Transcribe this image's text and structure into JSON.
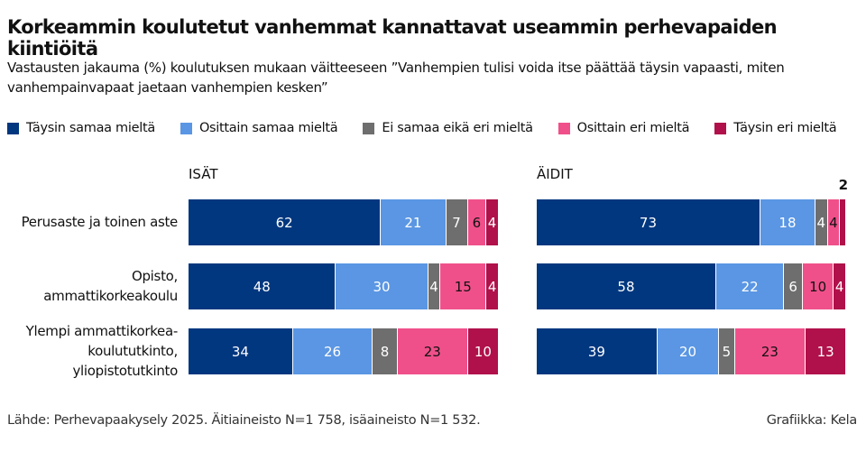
{
  "title": "Korkeammin koulutetut vanhemmat kannattavat useammin perhevapaiden kiintiöitä",
  "subtitle": "Vastausten jakauma (%) koulutuksen mukaan väitteeseen ”Vanhempien tulisi voida itse päättää täysin vapaasti, miten vanhempainvapaat jaetaan vanhempien kesken”",
  "source": "Lähde: Perhevapaakysely 2025. Äitiaineisto N=1 758, isäaineisto N=1 532.",
  "credit": "Grafiikka: Kela",
  "chart_data": {
    "type": "bar",
    "stacked": true,
    "orientation": "horizontal",
    "legend_position": "top",
    "series": [
      {
        "name": "Täysin samaa mieltä",
        "color": "#00377f"
      },
      {
        "name": "Osittain samaa mieltä",
        "color": "#5a96e3"
      },
      {
        "name": "Ei samaa eikä eri mieltä",
        "color": "#6e6e6e"
      },
      {
        "name": "Osittain eri mieltä",
        "color": "#f0508a"
      },
      {
        "name": "Täysin eri mieltä",
        "color": "#b0114a"
      }
    ],
    "categories": [
      "Perusaste ja toinen aste",
      "Opisto, ammattikorkeakoulu",
      "Ylempi ammattikorkea-koulututkinto, yliopistotutkinto"
    ],
    "category_lines": [
      [
        "Perusaste ja toinen aste"
      ],
      [
        "Opisto,",
        "ammattikorkeakoulu"
      ],
      [
        "Ylempi ammattikorkea-",
        "koulututkinto,",
        "yliopistotutkinto"
      ]
    ],
    "panels": [
      {
        "title": "ISÄT",
        "values": [
          [
            62,
            21,
            7,
            6,
            4
          ],
          [
            48,
            30,
            4,
            15,
            4
          ],
          [
            34,
            26,
            8,
            23,
            10
          ]
        ]
      },
      {
        "title": "ÄIDIT",
        "values": [
          [
            73,
            18,
            4,
            4,
            2
          ],
          [
            58,
            22,
            6,
            10,
            4
          ],
          [
            39,
            20,
            5,
            23,
            13
          ]
        ]
      }
    ]
  }
}
